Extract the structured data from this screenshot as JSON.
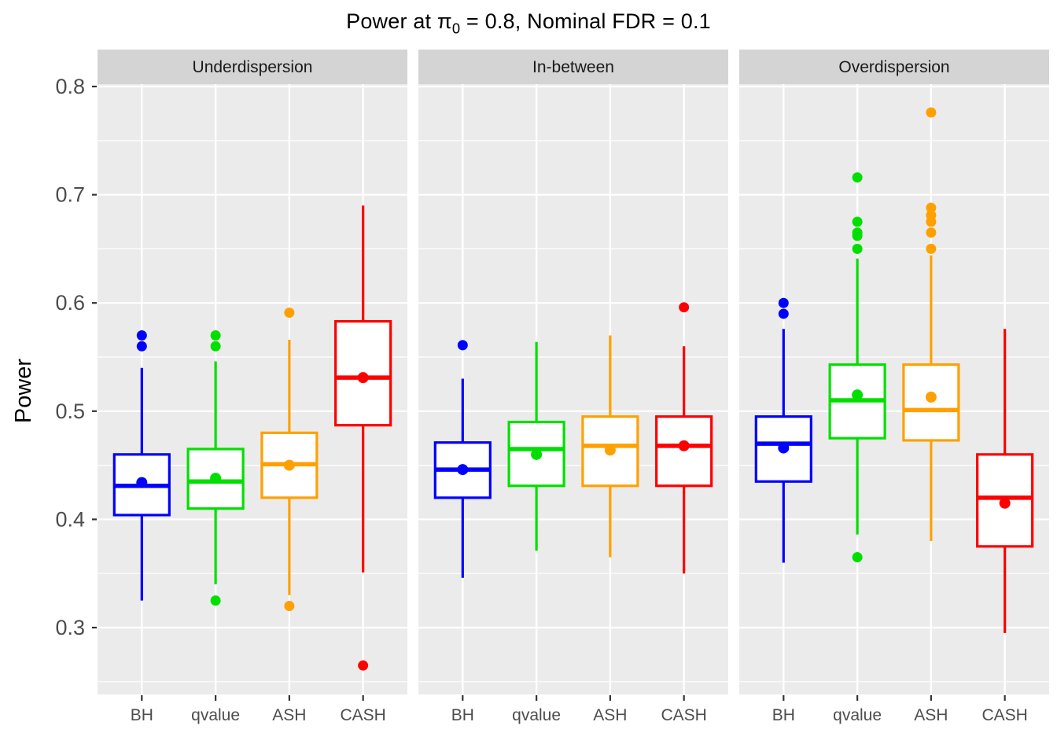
{
  "chart_data": {
    "type": "boxplot",
    "title": {
      "prefix": "Power at ",
      "pi": "π",
      "pi_sub": "0",
      "suffix": " = 0.8, Nominal FDR = 0.1"
    },
    "ylabel": "Power",
    "xlabel": "",
    "y_ticks": [
      "0.8",
      "0.7",
      "0.6",
      "0.5",
      "0.4",
      "0.3"
    ],
    "y_tick_values": [
      0.8,
      0.7,
      0.6,
      0.5,
      0.4,
      0.3
    ],
    "y_minor_gridlines": [
      0.75,
      0.65,
      0.55,
      0.45,
      0.35,
      0.25
    ],
    "ylim": [
      0.238,
      0.802
    ],
    "grid": "on",
    "legend": "none",
    "categories": [
      "BH",
      "qvalue",
      "ASH",
      "CASH"
    ],
    "colors": {
      "BH": "#0000FF",
      "qvalue": "#00E000",
      "ASH": "#FFA000",
      "CASH": "#FF0000",
      "panel_bg": "#EBEBEB",
      "strip_bg": "#D4D4D4",
      "gridline": "#FFFFFF",
      "tick": "#333333",
      "tick_label": "#4D4D4D",
      "strip_text": "#1A1A1A"
    },
    "facets": [
      {
        "label": "Underdispersion",
        "boxes": [
          {
            "method": "BH",
            "low": 0.325,
            "q1": 0.404,
            "median": 0.431,
            "q3": 0.46,
            "high": 0.54,
            "mean": 0.434,
            "outliers": [
              0.57,
              0.56
            ]
          },
          {
            "method": "qvalue",
            "low": 0.34,
            "q1": 0.41,
            "median": 0.435,
            "q3": 0.465,
            "high": 0.546,
            "mean": 0.438,
            "outliers": [
              0.57,
              0.56,
              0.325
            ]
          },
          {
            "method": "ASH",
            "low": 0.33,
            "q1": 0.42,
            "median": 0.451,
            "q3": 0.48,
            "high": 0.566,
            "mean": 0.45,
            "outliers": [
              0.591,
              0.32
            ]
          },
          {
            "method": "CASH",
            "low": 0.351,
            "q1": 0.487,
            "median": 0.531,
            "q3": 0.583,
            "high": 0.69,
            "mean": 0.531,
            "outliers": [
              0.265
            ]
          }
        ]
      },
      {
        "label": "In-between",
        "boxes": [
          {
            "method": "BH",
            "low": 0.346,
            "q1": 0.42,
            "median": 0.446,
            "q3": 0.471,
            "high": 0.53,
            "mean": 0.446,
            "outliers": [
              0.561
            ]
          },
          {
            "method": "qvalue",
            "low": 0.371,
            "q1": 0.431,
            "median": 0.465,
            "q3": 0.49,
            "high": 0.564,
            "mean": 0.46,
            "outliers": []
          },
          {
            "method": "ASH",
            "low": 0.365,
            "q1": 0.431,
            "median": 0.468,
            "q3": 0.495,
            "high": 0.57,
            "mean": 0.464,
            "outliers": []
          },
          {
            "method": "CASH",
            "low": 0.35,
            "q1": 0.431,
            "median": 0.468,
            "q3": 0.495,
            "high": 0.56,
            "mean": 0.468,
            "outliers": [
              0.596
            ]
          }
        ]
      },
      {
        "label": "Overdispersion",
        "boxes": [
          {
            "method": "BH",
            "low": 0.36,
            "q1": 0.435,
            "median": 0.47,
            "q3": 0.495,
            "high": 0.576,
            "mean": 0.466,
            "outliers": [
              0.6,
              0.59
            ]
          },
          {
            "method": "qvalue",
            "low": 0.386,
            "q1": 0.475,
            "median": 0.51,
            "q3": 0.543,
            "high": 0.641,
            "mean": 0.515,
            "outliers": [
              0.716,
              0.675,
              0.665,
              0.662,
              0.65,
              0.365
            ]
          },
          {
            "method": "ASH",
            "low": 0.38,
            "q1": 0.473,
            "median": 0.501,
            "q3": 0.543,
            "high": 0.644,
            "mean": 0.513,
            "outliers": [
              0.776,
              0.688,
              0.681,
              0.675,
              0.665,
              0.65
            ]
          },
          {
            "method": "CASH",
            "low": 0.295,
            "q1": 0.375,
            "median": 0.42,
            "q3": 0.46,
            "high": 0.576,
            "mean": 0.415,
            "outliers": []
          }
        ]
      }
    ]
  }
}
